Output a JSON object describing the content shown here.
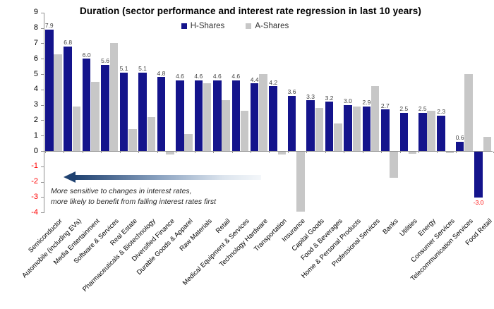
{
  "title": "Duration (sector performance and interest rate regression in last 10 years)",
  "annotation": {
    "line1": "More sensitive to changes in interest rates,",
    "line2": "more likely to benefit from falling interest rates first"
  },
  "colors": {
    "h_shares": "#14148C",
    "a_shares": "#C7C7C7",
    "axis": "#909090",
    "value_label": "#404040",
    "negative_label": "#FF0000",
    "arrow_dark": "#1F4170"
  },
  "chart_data": {
    "type": "bar",
    "title": "Duration (sector performance and interest rate regression in last 10 years)",
    "categories": [
      "Semiconductor",
      "Automobile (including EVs)",
      "Media Entertainment",
      "Software & Services",
      "Real Estate",
      "Pharmaceuticals & Biotechnology",
      "Diversified Finance",
      "Durable Goods & Apparel",
      "Raw Materials",
      "Retail",
      "Medical Equipment & Services",
      "Technology Hardware",
      "Transportation",
      "Insurance",
      "Capital Goods",
      "Food & Beverages",
      "Home & Personal Products",
      "Professional Services",
      "Banks",
      "Utilities",
      "Energy",
      "Consumer Services",
      "Telecommunication Services",
      "Food Retail"
    ],
    "series": [
      {
        "name": "H-Shares",
        "color": "#14148C",
        "values": [
          7.9,
          6.8,
          6.0,
          5.6,
          5.1,
          5.1,
          4.8,
          4.6,
          4.6,
          4.6,
          4.6,
          4.4,
          4.2,
          3.6,
          3.3,
          3.2,
          3.0,
          2.9,
          2.7,
          2.5,
          2.5,
          2.3,
          0.6,
          -3.0
        ],
        "data_labels": true
      },
      {
        "name": "A-Shares",
        "color": "#C7C7C7",
        "values": [
          6.3,
          2.9,
          4.5,
          7.0,
          1.4,
          2.2,
          -0.2,
          1.1,
          4.4,
          3.3,
          2.6,
          5.0,
          -0.2,
          -3.9,
          2.8,
          1.8,
          2.9,
          4.2,
          -1.7,
          -0.15,
          2.6,
          -0.1,
          5.0,
          0.9
        ],
        "data_labels": false
      }
    ],
    "ylim": [
      -4,
      9
    ],
    "yticks": [
      9,
      8,
      7,
      6,
      5,
      4,
      3,
      2,
      1,
      0,
      -1,
      -2,
      -3,
      -4
    ],
    "negative_tick_color": "#FF0000",
    "grid": false,
    "legend_position": "top-center",
    "xlabel": "",
    "ylabel": ""
  }
}
